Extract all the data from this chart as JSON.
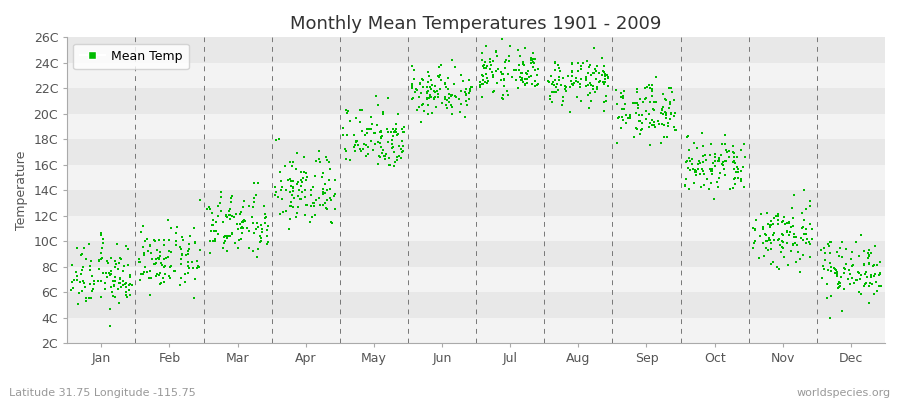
{
  "title": "Monthly Mean Temperatures 1901 - 2009",
  "ylabel": "Temperature",
  "subtitle": "Latitude 31.75 Longitude -115.75",
  "watermark": "worldspecies.org",
  "dot_color": "#00bb00",
  "bg_color": "#ffffff",
  "plot_bg_color": "#e8e8e8",
  "legend_label": "Mean Temp",
  "ylim": [
    2,
    26
  ],
  "ytick_labels": [
    "2C",
    "4C",
    "6C",
    "8C",
    "10C",
    "12C",
    "14C",
    "16C",
    "18C",
    "20C",
    "22C",
    "24C",
    "26C"
  ],
  "ytick_values": [
    2,
    4,
    6,
    8,
    10,
    12,
    14,
    16,
    18,
    20,
    22,
    24,
    26
  ],
  "months": [
    "Jan",
    "Feb",
    "Mar",
    "Apr",
    "May",
    "Jun",
    "Jul",
    "Aug",
    "Sep",
    "Oct",
    "Nov",
    "Dec"
  ],
  "month_means": [
    7.2,
    8.5,
    11.2,
    14.0,
    18.2,
    21.8,
    23.2,
    22.5,
    20.2,
    15.8,
    10.5,
    7.8
  ],
  "month_stds": [
    1.3,
    1.2,
    1.3,
    1.5,
    1.3,
    1.0,
    0.8,
    0.9,
    1.1,
    1.2,
    1.4,
    1.2
  ],
  "n_years": 109,
  "marker_size": 4,
  "title_fontsize": 13,
  "axis_fontsize": 9,
  "tick_fontsize": 9
}
